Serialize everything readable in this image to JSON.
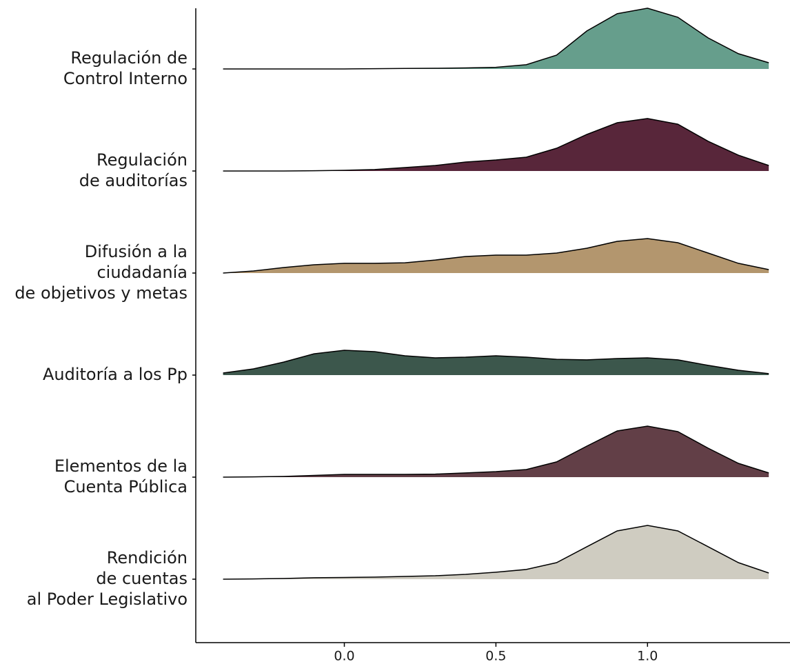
{
  "chart_data": {
    "type": "ridgeline",
    "x": [
      -0.4,
      -0.3,
      -0.2,
      -0.1,
      0,
      0.1,
      0.2,
      0.3,
      0.4,
      0.5,
      0.6,
      0.7,
      0.8,
      0.9,
      1.0,
      1.1,
      1.2,
      1.3,
      1.4
    ],
    "series": [
      {
        "name": [
          "Regulación de",
          "Control Interno"
        ],
        "color": "#669e8c",
        "values": [
          0,
          0,
          0,
          0,
          0,
          0.003,
          0.005,
          0.007,
          0.01,
          0.016,
          0.041,
          0.135,
          0.372,
          0.541,
          0.595,
          0.507,
          0.304,
          0.149,
          0.061
        ]
      },
      {
        "name": [
          "Regulación",
          "de auditorías"
        ],
        "color": "#58263a",
        "values": [
          0,
          0,
          0,
          0.003,
          0.007,
          0.014,
          0.034,
          0.054,
          0.088,
          0.108,
          0.135,
          0.223,
          0.358,
          0.473,
          0.514,
          0.459,
          0.291,
          0.155,
          0.054
        ]
      },
      {
        "name": [
          "Difusión a la",
          "ciudadanía",
          "de objetivos y metas"
        ],
        "color": "#b3966e",
        "values": [
          0,
          0.02,
          0.054,
          0.081,
          0.095,
          0.095,
          0.101,
          0.128,
          0.162,
          0.176,
          0.176,
          0.196,
          0.243,
          0.311,
          0.338,
          0.297,
          0.196,
          0.095,
          0.034
        ]
      },
      {
        "name": [
          "Auditoría a los Pp"
        ],
        "color": "#3c574c",
        "values": [
          0.02,
          0.061,
          0.128,
          0.209,
          0.243,
          0.23,
          0.189,
          0.169,
          0.176,
          0.189,
          0.176,
          0.155,
          0.149,
          0.162,
          0.169,
          0.149,
          0.095,
          0.047,
          0.014
        ]
      },
      {
        "name": [
          "Elementos de la",
          "Cuenta Pública"
        ],
        "color": "#623f47",
        "values": [
          0,
          0.003,
          0.007,
          0.017,
          0.027,
          0.027,
          0.027,
          0.03,
          0.041,
          0.054,
          0.074,
          0.149,
          0.304,
          0.453,
          0.5,
          0.446,
          0.284,
          0.135,
          0.041
        ]
      },
      {
        "name": [
          "Rendición",
          "de cuentas",
          "al Poder Legislativo"
        ],
        "color": "#cfccc1",
        "values": [
          0,
          0.003,
          0.007,
          0.014,
          0.017,
          0.02,
          0.027,
          0.034,
          0.047,
          0.068,
          0.095,
          0.162,
          0.318,
          0.473,
          0.527,
          0.473,
          0.318,
          0.162,
          0.061
        ]
      }
    ],
    "xlim": [
      -0.49,
      1.47
    ],
    "xticks": [
      {
        "value": 0,
        "label": "0.0"
      },
      0.5,
      {
        "value": 1,
        "label": "1.0"
      }
    ]
  }
}
